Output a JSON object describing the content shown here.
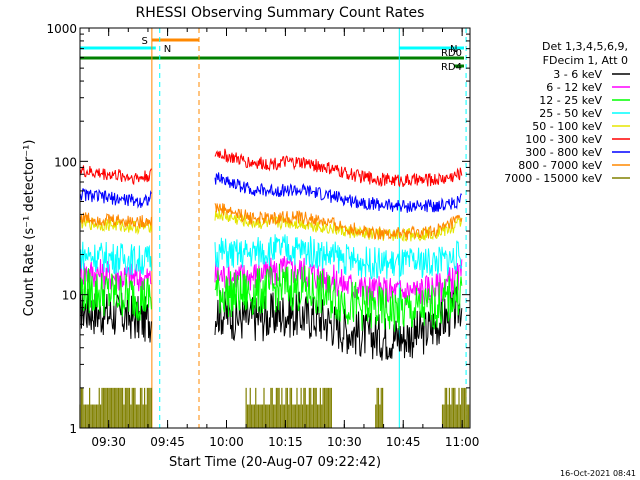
{
  "chart_data": {
    "type": "line",
    "title": "RHESSI Observing Summary Count Rates",
    "xlabel": "Start Time (20-Aug-07 09:22:42)",
    "ylabel": "Count Rate (s⁻¹ detector⁻¹)",
    "y_scale": "log",
    "ylim": [
      1,
      1000
    ],
    "xlim": [
      "09:22:42",
      "11:02:00"
    ],
    "x_ticks": [
      "09:30",
      "09:45",
      "10:00",
      "10:15",
      "10:30",
      "10:45",
      "11:00"
    ],
    "y_ticks": [
      "1",
      "10",
      "100",
      "1000"
    ],
    "timestamp": "16-Oct-2021 08:41",
    "legend_header": [
      "Det 1,3,4,5,6,9,",
      "FDecim 1, Att 0"
    ],
    "legend_position": "right",
    "series": [
      {
        "name": "3 - 6 keV",
        "color": "#000000",
        "x": [
          "09:22:42",
          "09:26",
          "09:30",
          "09:33",
          "09:36",
          "09:38",
          "09:58",
          "10:02",
          "10:06",
          "10:10",
          "10:15",
          "10:20",
          "10:25",
          "10:30",
          "10:35",
          "10:40",
          "10:45",
          "10:50",
          "10:55",
          "10:58",
          "11:00"
        ],
        "values": [
          8,
          7.5,
          7.2,
          7,
          6.8,
          6.5,
          7.5,
          6.8,
          6.6,
          6.8,
          7.2,
          7,
          6.5,
          5.5,
          5,
          4.8,
          4.8,
          5.2,
          6.5,
          7.5,
          8.5
        ]
      },
      {
        "name": "6 - 12 keV",
        "color": "#ff00ff",
        "x": [
          "09:22:42",
          "09:26",
          "09:30",
          "09:33",
          "09:36",
          "09:38",
          "09:58",
          "10:02",
          "10:06",
          "10:10",
          "10:15",
          "10:20",
          "10:25",
          "10:30",
          "10:35",
          "10:40",
          "10:45",
          "10:50",
          "10:55",
          "10:58",
          "11:00"
        ],
        "values": [
          15,
          14.5,
          14,
          13.8,
          13.5,
          13,
          14,
          13.5,
          13.8,
          14.5,
          15.5,
          15,
          13.5,
          12,
          11,
          10.5,
          10.5,
          10.8,
          11.5,
          13,
          14
        ]
      },
      {
        "name": "12 - 25 keV",
        "color": "#00ff00",
        "x": [
          "09:22:42",
          "09:26",
          "09:30",
          "09:33",
          "09:36",
          "09:38",
          "09:58",
          "10:02",
          "10:06",
          "10:10",
          "10:15",
          "10:20",
          "10:25",
          "10:30",
          "10:35",
          "10:40",
          "10:45",
          "10:50",
          "10:55",
          "10:58",
          "11:00"
        ],
        "values": [
          11,
          10.5,
          10.2,
          10,
          9.8,
          9.5,
          10.5,
          10,
          10.2,
          10.8,
          11.5,
          11,
          10,
          9,
          8,
          7.6,
          7.5,
          7.8,
          8.5,
          10,
          11
        ]
      },
      {
        "name": "25 - 50 keV",
        "color": "#00ffff",
        "x": [
          "09:22:42",
          "09:26",
          "09:30",
          "09:33",
          "09:36",
          "09:38",
          "09:58",
          "10:02",
          "10:06",
          "10:10",
          "10:15",
          "10:20",
          "10:25",
          "10:30",
          "10:35",
          "10:40",
          "10:45",
          "10:50",
          "10:55",
          "10:58",
          "11:00"
        ],
        "values": [
          20,
          19.5,
          19,
          18.8,
          18.5,
          18,
          21,
          20,
          20.5,
          21.5,
          22,
          21.5,
          20,
          18.5,
          17.5,
          17,
          17,
          17.5,
          18,
          19,
          20
        ]
      },
      {
        "name": "50 - 100 keV",
        "color": "#e5e500",
        "x": [
          "09:22:42",
          "09:26",
          "09:30",
          "09:33",
          "09:36",
          "09:38",
          "09:58",
          "10:02",
          "10:06",
          "10:10",
          "10:15",
          "10:20",
          "10:25",
          "10:30",
          "10:35",
          "10:40",
          "10:45",
          "10:50",
          "10:55",
          "10:58",
          "11:00"
        ],
        "values": [
          35,
          34,
          33.5,
          33,
          32.5,
          32,
          40,
          37,
          35,
          34,
          35,
          34,
          32,
          30,
          28.5,
          28,
          28,
          28.5,
          30,
          32,
          36
        ]
      },
      {
        "name": "100 - 300 keV",
        "color": "#ff0000",
        "x": [
          "09:22:42",
          "09:26",
          "09:30",
          "09:33",
          "09:36",
          "09:38",
          "09:58",
          "10:02",
          "10:06",
          "10:10",
          "10:15",
          "10:20",
          "10:25",
          "10:30",
          "10:35",
          "10:40",
          "10:45",
          "10:50",
          "10:55",
          "10:58",
          "11:00"
        ],
        "values": [
          85,
          82,
          80,
          78,
          76,
          75,
          115,
          105,
          98,
          96,
          98,
          97,
          90,
          82,
          76,
          73,
          72,
          72,
          74,
          78,
          82
        ]
      },
      {
        "name": "300 - 800 keV",
        "color": "#0000ff",
        "x": [
          "09:22:42",
          "09:26",
          "09:30",
          "09:33",
          "09:36",
          "09:38",
          "09:58",
          "10:02",
          "10:06",
          "10:10",
          "10:15",
          "10:20",
          "10:25",
          "10:30",
          "10:35",
          "10:40",
          "10:45",
          "10:50",
          "10:55",
          "10:58",
          "11:00"
        ],
        "values": [
          57,
          55,
          53,
          52,
          51,
          50,
          75,
          68,
          62,
          60,
          61,
          60,
          56,
          52,
          49,
          47,
          46,
          46,
          47,
          49,
          52
        ]
      },
      {
        "name": "800 - 7000 keV",
        "color": "#ff8800",
        "x": [
          "09:22:42",
          "09:26",
          "09:30",
          "09:33",
          "09:36",
          "09:38",
          "09:58",
          "10:02",
          "10:06",
          "10:10",
          "10:15",
          "10:20",
          "10:25",
          "10:30",
          "10:35",
          "10:40",
          "10:45",
          "10:50",
          "10:55",
          "10:58",
          "11:00"
        ],
        "values": [
          38,
          37,
          36.5,
          36,
          35.5,
          35,
          45,
          41,
          38,
          37,
          38,
          37.5,
          35,
          32,
          30,
          29,
          28.5,
          29,
          31,
          35,
          38
        ]
      },
      {
        "name": "7000 - 15000 keV",
        "color": "#808000",
        "x": [
          "09:22:42",
          "09:38",
          "09:58",
          "10:05",
          "10:10",
          "10:20",
          "10:30",
          "10:40",
          "10:55",
          "11:00"
        ],
        "values": [
          1,
          1,
          1,
          1,
          1,
          1,
          1,
          1,
          1,
          1
        ]
      }
    ],
    "flag_bars": [
      {
        "label": "S",
        "color": "#ff8800",
        "start": "09:41",
        "end": "09:53"
      },
      {
        "label": "N",
        "color": "#00ffff",
        "start": "09:22:42",
        "end": "09:42"
      },
      {
        "label": "N",
        "color": "#00ffff",
        "start": "10:44",
        "end": "11:01"
      },
      {
        "label": "RD0",
        "color": "#008000",
        "start": "09:22:42",
        "end": "11:01"
      },
      {
        "label": "RD4",
        "color": "#008000",
        "start": "10:58",
        "end": "11:01"
      }
    ],
    "vertical_lines": [
      {
        "time": "09:22:42",
        "color": "#00ffff",
        "style": "solid"
      },
      {
        "time": "09:41",
        "color": "#ff8800",
        "style": "solid"
      },
      {
        "time": "09:43",
        "color": "#00ffff",
        "style": "dashed"
      },
      {
        "time": "09:53",
        "color": "#ff8800",
        "style": "dashed"
      },
      {
        "time": "10:44",
        "color": "#00ffff",
        "style": "solid"
      },
      {
        "time": "11:01",
        "color": "#00ffff",
        "style": "dashed"
      }
    ],
    "data_gap": {
      "start": "09:41",
      "end": "09:57"
    }
  }
}
